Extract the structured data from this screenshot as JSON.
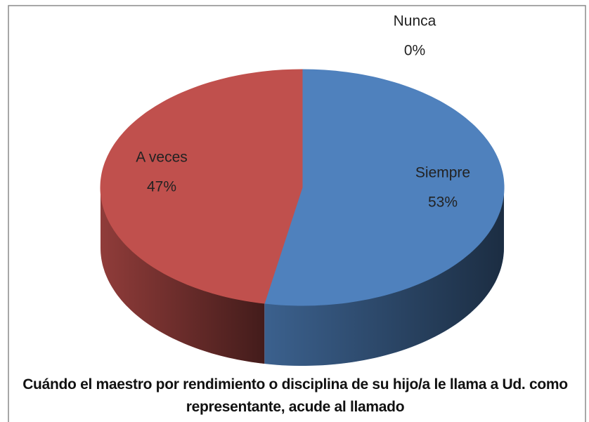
{
  "chart_data": {
    "type": "pie",
    "title": "Cuándo el maestro por rendimiento o disciplina de su hijo/a le llama a Ud. como representante, acude al llamado",
    "categories": [
      "Siempre",
      "A veces",
      "Nunca"
    ],
    "values": [
      53,
      47,
      0
    ],
    "value_labels": [
      "53%",
      "47%",
      "0%"
    ],
    "colors": [
      "#4f81bd",
      "#c0504d",
      "#9bbb59"
    ]
  }
}
